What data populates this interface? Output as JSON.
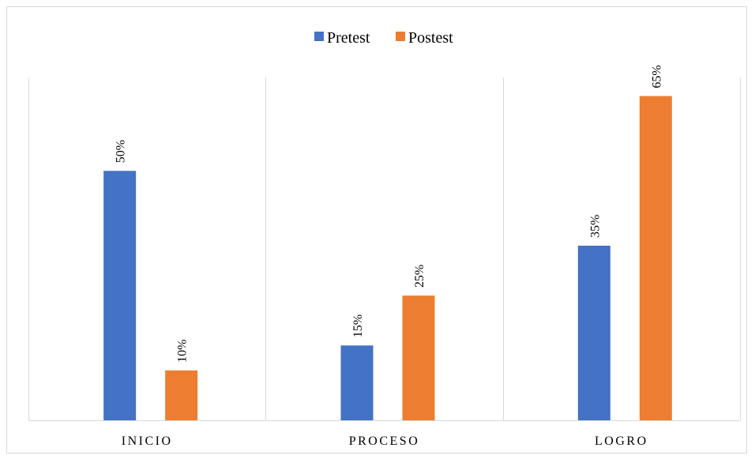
{
  "chart_data": {
    "type": "bar",
    "categories": [
      "INICIO",
      "PROCESO",
      "LOGRO"
    ],
    "series": [
      {
        "name": "Pretest",
        "values": [
          50,
          15,
          35
        ],
        "labels": [
          "50%",
          "15%",
          "35%"
        ],
        "color": "#4472c4"
      },
      {
        "name": "Postest",
        "values": [
          10,
          25,
          65
        ],
        "labels": [
          "10%",
          "25%",
          "65%"
        ],
        "color": "#ed7d31"
      }
    ],
    "ylim": [
      0,
      70
    ],
    "grid": "vertical-category-separators",
    "legend": "top-center",
    "data_labels": "rotated-above-bars"
  }
}
